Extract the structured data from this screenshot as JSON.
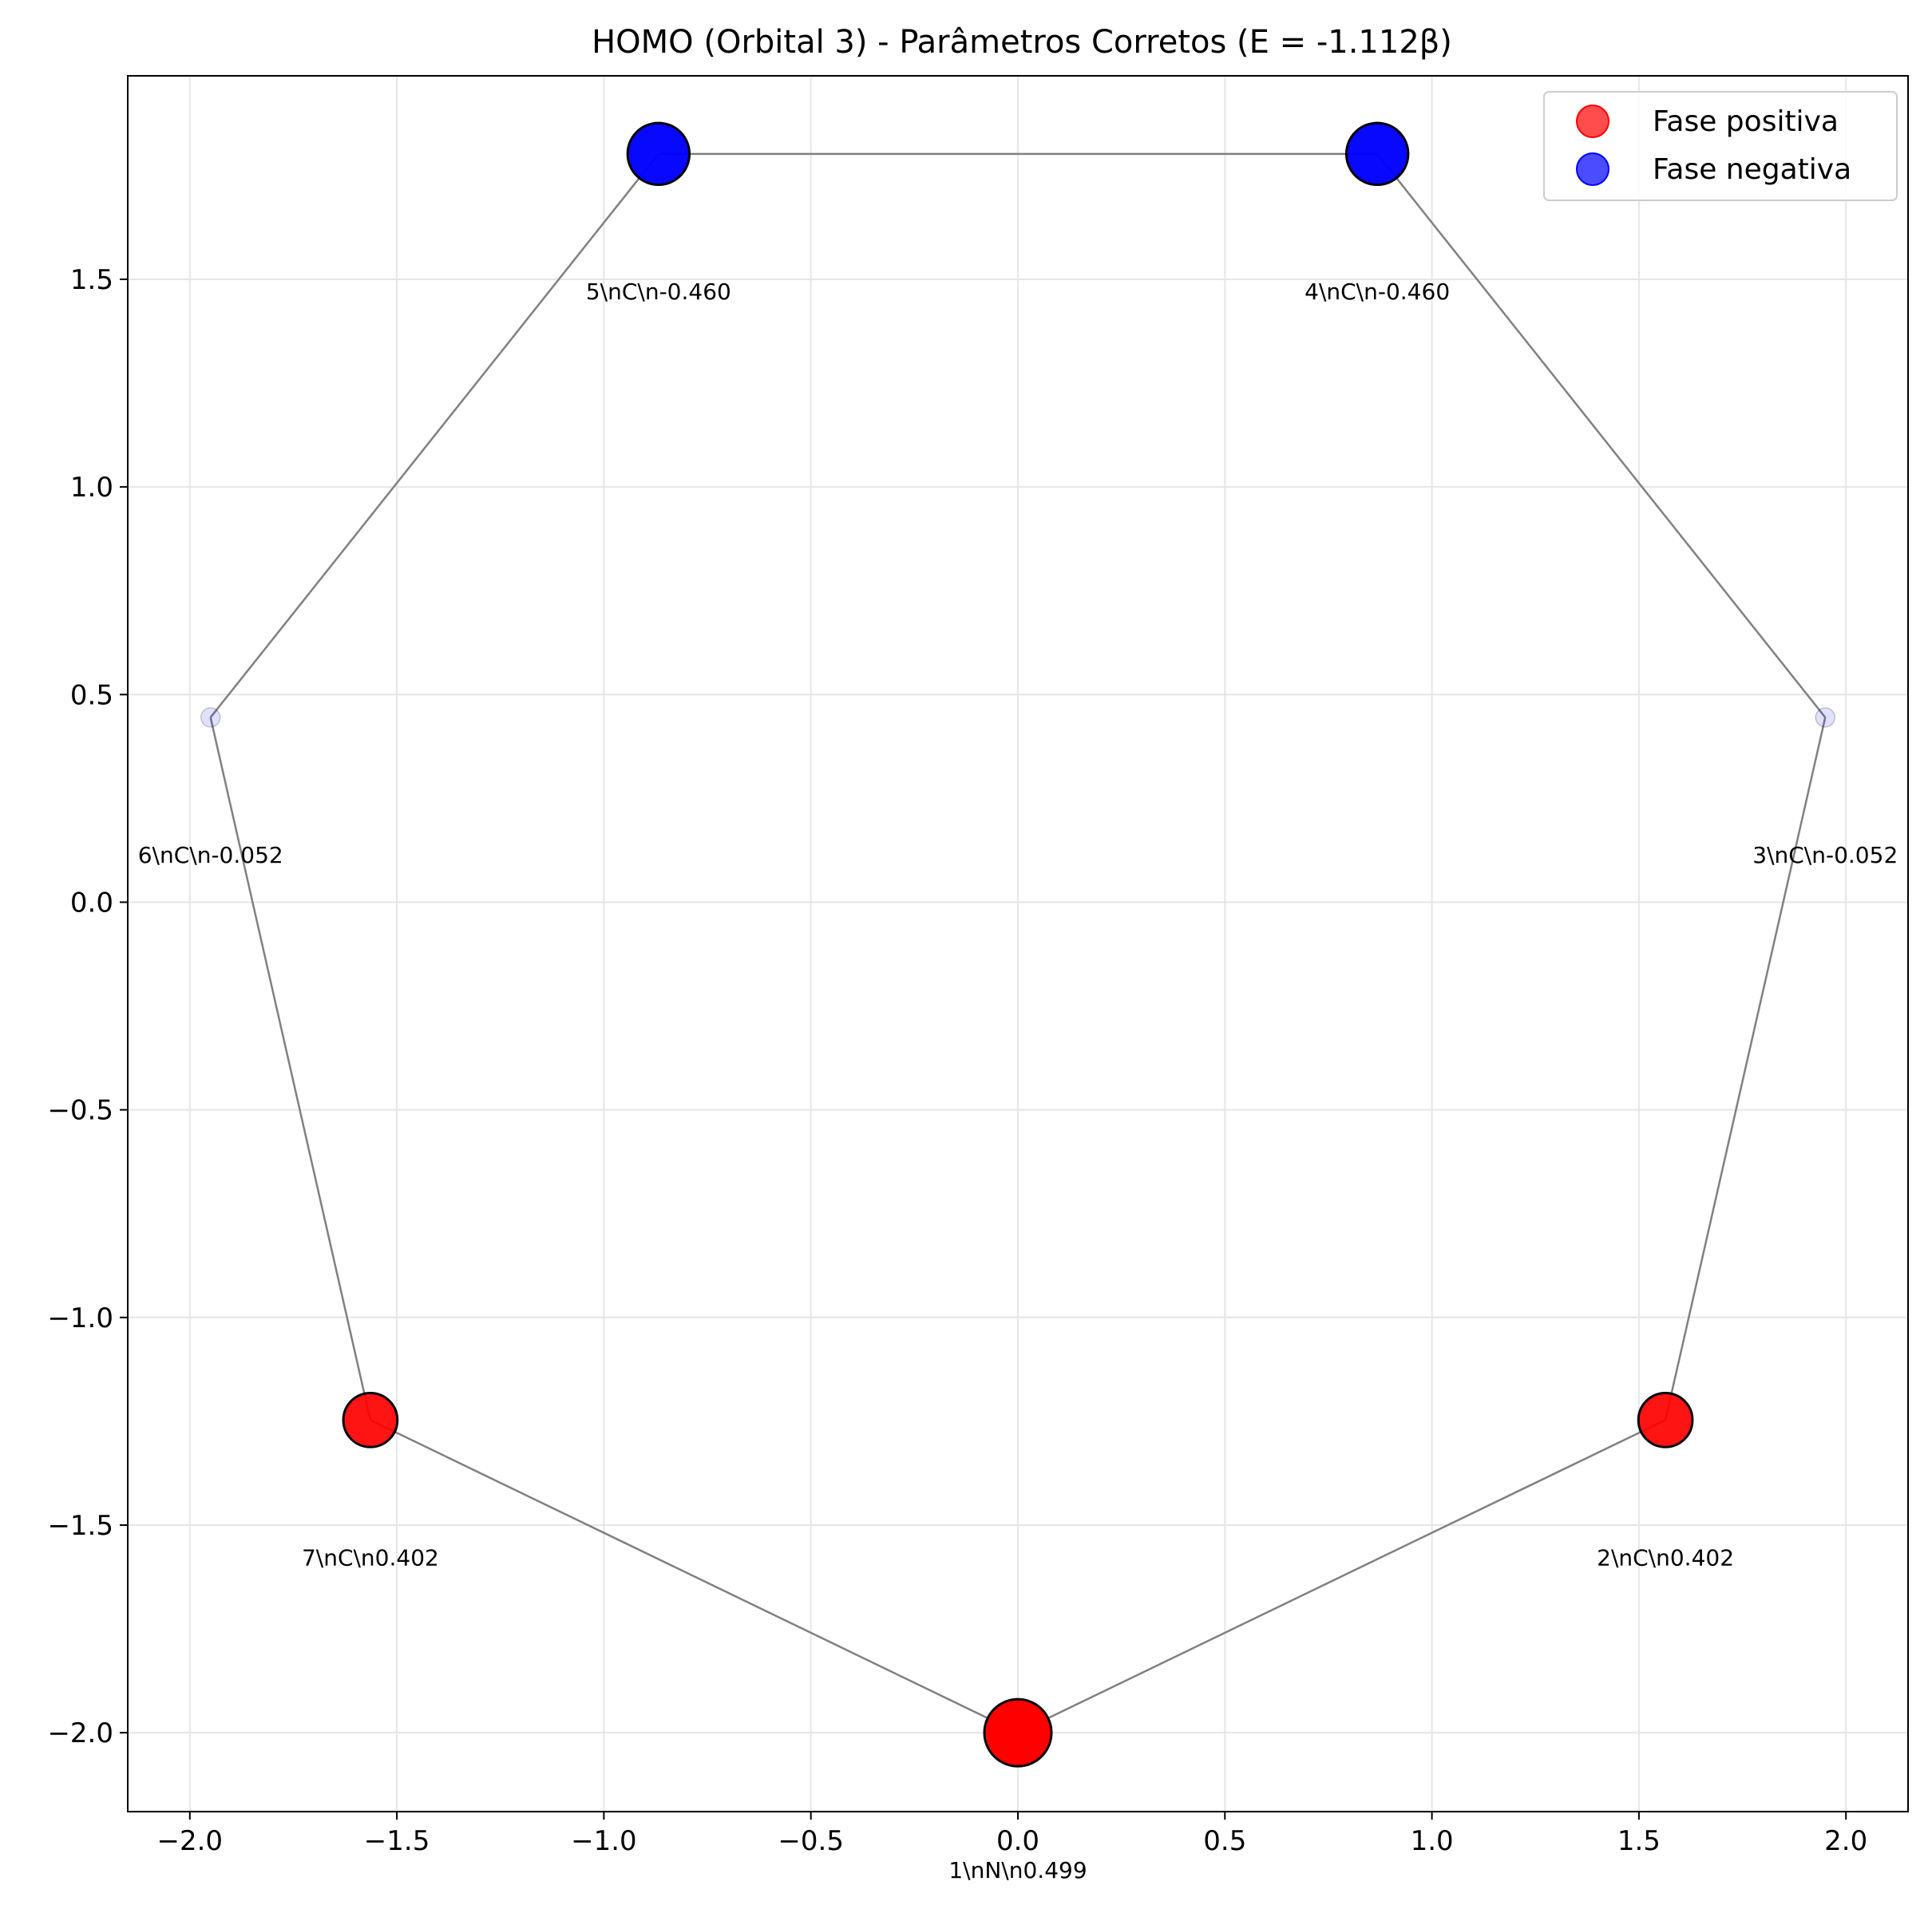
{
  "chart_data": {
    "type": "scatter",
    "title": "HOMO (Orbital 3) - Parâmetros Corretos (E = -1.112β)",
    "xlabel": "",
    "ylabel": "",
    "xlim": [
      -2.15,
      2.15
    ],
    "ylim": [
      -2.19,
      1.99
    ],
    "xticks": [
      -2.0,
      -1.5,
      -1.0,
      -0.5,
      0.0,
      0.5,
      1.0,
      1.5,
      2.0
    ],
    "xtick_labels": [
      "−2.0",
      "−1.5",
      "−1.0",
      "−0.5",
      "0.0",
      "0.5",
      "1.0",
      "1.5",
      "2.0"
    ],
    "yticks": [
      -2.0,
      -1.5,
      -1.0,
      -0.5,
      0.0,
      0.5,
      1.0,
      1.5
    ],
    "ytick_labels": [
      "−2.0",
      "−1.5",
      "−1.0",
      "−0.5",
      "0.0",
      "0.5",
      "1.0",
      "1.5"
    ],
    "grid": true,
    "legend": {
      "position": "top-right",
      "entries": [
        {
          "label": "Fase positiva",
          "color": "#ff0000"
        },
        {
          "label": "Fase negativa",
          "color": "#0000ff"
        }
      ]
    },
    "colors": {
      "positive": "#ff0000",
      "negative": "#0000ff",
      "bond": "#808080"
    },
    "bonds": [
      [
        1,
        2
      ],
      [
        2,
        3
      ],
      [
        3,
        4
      ],
      [
        4,
        5
      ],
      [
        5,
        6
      ],
      [
        6,
        7
      ],
      [
        7,
        1
      ]
    ],
    "atoms": [
      {
        "id": 1,
        "x": 0.0,
        "y": -2.0,
        "coef": 0.499,
        "label": "1\\nN\\n0.499"
      },
      {
        "id": 2,
        "x": 1.564,
        "y": -1.247,
        "coef": 0.402,
        "label": "2\\nC\\n0.402"
      },
      {
        "id": 3,
        "x": 1.95,
        "y": 0.445,
        "coef": -0.052,
        "label": "3\\nC\\n-0.052"
      },
      {
        "id": 4,
        "x": 0.868,
        "y": 1.802,
        "coef": -0.46,
        "label": "4\\nC\\n-0.460"
      },
      {
        "id": 5,
        "x": -0.868,
        "y": 1.802,
        "coef": -0.46,
        "label": "5\\nC\\n-0.460"
      },
      {
        "id": 6,
        "x": -1.95,
        "y": 0.445,
        "coef": -0.052,
        "label": "6\\nC\\n-0.052"
      },
      {
        "id": 7,
        "x": -1.564,
        "y": -1.247,
        "coef": 0.402,
        "label": "7\\nC\\n0.402"
      }
    ]
  }
}
